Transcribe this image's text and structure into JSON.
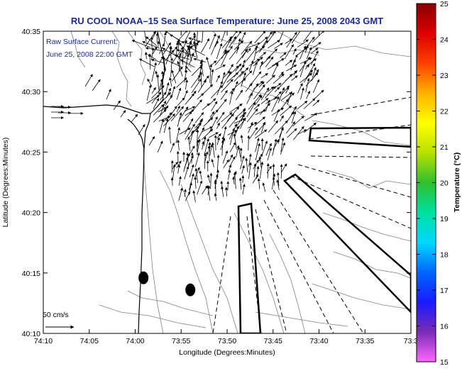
{
  "chart_data": {
    "type": "map-vector-field",
    "title": "RU COOL   NOAA–15  Sea Surface Temperature:  June 25, 2008 2043 GMT",
    "annotation_line1": "Raw Surface Current:",
    "annotation_line2": "June 25, 2008 22:00 GMT",
    "xlabel": "Longitude (Degrees:Minutes)",
    "ylabel": "Latitude (Degrees:Minutes)",
    "x_range_min": [
      -74.1667,
      -73.5
    ],
    "y_range_min": [
      40.1667,
      40.5833
    ],
    "x_ticks": [
      {
        "v": -74.1667,
        "label": "74:10"
      },
      {
        "v": -74.0833,
        "label": "74:05"
      },
      {
        "v": -74.0,
        "label": "74:00"
      },
      {
        "v": -73.9167,
        "label": "73:55"
      },
      {
        "v": -73.8333,
        "label": "73:50"
      },
      {
        "v": -73.75,
        "label": "73:45"
      },
      {
        "v": -73.6667,
        "label": "73:40"
      },
      {
        "v": -73.5833,
        "label": "73:35"
      },
      {
        "v": -73.5,
        "label": "73:3"
      }
    ],
    "y_ticks": [
      {
        "v": 40.1667,
        "label": "40:10"
      },
      {
        "v": 40.25,
        "label": "40:15"
      },
      {
        "v": 40.3333,
        "label": "40:20"
      },
      {
        "v": 40.4167,
        "label": "40:25"
      },
      {
        "v": 40.5,
        "label": "40:30"
      },
      {
        "v": 40.5833,
        "label": "40:35"
      }
    ],
    "scale_label": "50 cm/s",
    "scale_speed_cms": 50,
    "colorbar": {
      "label": "Temperature (°C)",
      "range": [
        15,
        25
      ],
      "ticks": [
        15,
        16,
        17,
        18,
        19,
        20,
        21,
        22,
        23,
        24,
        25
      ],
      "colors": [
        "#ff66ff",
        "#7a2cb8",
        "#1a1aff",
        "#0066ff",
        "#00d8ff",
        "#00e0a0",
        "#2fbf2f",
        "#b8e000",
        "#ffff00",
        "#ffb000",
        "#ff4000",
        "#dd0000",
        "#8a0000"
      ]
    },
    "land_color": "#ffffff",
    "contour_color": "#808080",
    "coastline_color": "#000000",
    "vector_color": "#000000",
    "current_vectors_sample": [
      {
        "lon": -73.9,
        "lat": 40.55,
        "u": -20,
        "v": 22
      },
      {
        "lon": -73.8,
        "lat": 40.5,
        "u": 12,
        "v": 15
      },
      {
        "lon": -73.75,
        "lat": 40.42,
        "u": 10,
        "v": 18
      },
      {
        "lon": -73.78,
        "lat": 40.38,
        "u": 3,
        "v": 22
      },
      {
        "lon": -74.12,
        "lat": 40.47,
        "u": 25,
        "v": 0
      }
    ],
    "dump_sites": [
      {
        "lon": -73.985,
        "lat": 40.2433
      },
      {
        "lon": -73.9,
        "lat": 40.2267
      }
    ],
    "boxes": [
      "polygon-1",
      "polygon-2",
      "polygon-3"
    ],
    "dashed_shipping_lanes": 10
  }
}
